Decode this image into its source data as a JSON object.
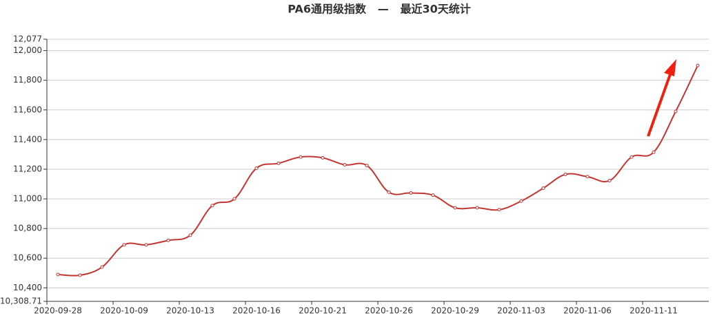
{
  "chart_data": {
    "type": "line",
    "title": "PA6通用级指数   —   最近30天统计",
    "categories": [
      "2020-09-28",
      null,
      null,
      "2020-10-09",
      null,
      null,
      "2020-10-13",
      null,
      null,
      "2020-10-16",
      null,
      null,
      "2020-10-21",
      null,
      null,
      "2020-10-26",
      null,
      null,
      "2020-10-29",
      null,
      null,
      "2020-11-03",
      null,
      null,
      "2020-11-06",
      null,
      null,
      "2020-11-11",
      null,
      null
    ],
    "values": [
      10490,
      10485,
      10540,
      10690,
      10690,
      10720,
      10755,
      10955,
      11000,
      11207,
      11240,
      11282,
      11277,
      11230,
      11225,
      11045,
      11040,
      11025,
      10940,
      10940,
      10927,
      10985,
      11072,
      11165,
      11150,
      11123,
      11282,
      11315,
      11590,
      11900
    ],
    "color": "#c23531",
    "ylim": [
      10308.71,
      12077
    ],
    "yticks": [
      {
        "value": 10308.71,
        "label": "10,308.71"
      },
      {
        "value": 10400,
        "label": "10,400"
      },
      {
        "value": 10600,
        "label": "10,600"
      },
      {
        "value": 10800,
        "label": "10,800"
      },
      {
        "value": 11000,
        "label": "11,000"
      },
      {
        "value": 11200,
        "label": "11,200"
      },
      {
        "value": 11400,
        "label": "11,400"
      },
      {
        "value": 11600,
        "label": "11,600"
      },
      {
        "value": 11800,
        "label": "11,800"
      },
      {
        "value": 12000,
        "label": "12,000"
      },
      {
        "value": 12077,
        "label": "12,077"
      }
    ],
    "grid": true
  }
}
